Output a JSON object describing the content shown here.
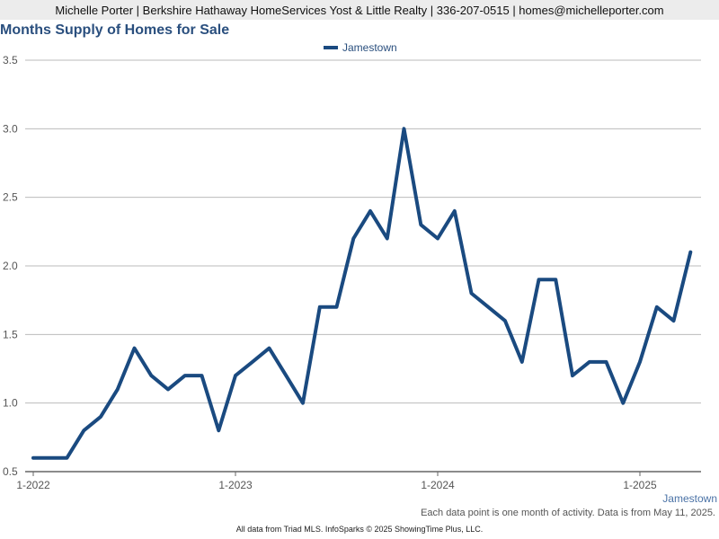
{
  "header": {
    "contact": "Michelle Porter | Berkshire Hathaway HomeServices Yost & Little Realty | 336-207-0515 | homes@michelleporter.com"
  },
  "footer": {
    "note": "Each data point is one month of activity. Data is from May 11, 2025.",
    "source": "All data from Triad MLS. InfoSparks © 2025 ShowingTime Plus, LLC."
  },
  "colors": {
    "series": "#1a4a80",
    "title": "#2a4f7e",
    "grid": "#bbbbbb"
  },
  "chart_data": {
    "type": "line",
    "title": "Months Supply of Homes for Sale",
    "xlabel": "",
    "ylabel": "",
    "ylim": [
      0.5,
      3.5
    ],
    "y_ticks": [
      "0.5",
      "1.0",
      "1.5",
      "2.0",
      "2.5",
      "3.0",
      "3.5"
    ],
    "x_ticks": [
      "1-2022",
      "1-2023",
      "1-2024",
      "1-2025"
    ],
    "grid": true,
    "legend_position": "top-center",
    "x": [
      "2022-01",
      "2022-02",
      "2022-03",
      "2022-04",
      "2022-05",
      "2022-06",
      "2022-07",
      "2022-08",
      "2022-09",
      "2022-10",
      "2022-11",
      "2022-12",
      "2023-01",
      "2023-02",
      "2023-03",
      "2023-04",
      "2023-05",
      "2023-06",
      "2023-07",
      "2023-08",
      "2023-09",
      "2023-10",
      "2023-11",
      "2023-12",
      "2024-01",
      "2024-02",
      "2024-03",
      "2024-04",
      "2024-05",
      "2024-06",
      "2024-07",
      "2024-08",
      "2024-09",
      "2024-10",
      "2024-11",
      "2024-12",
      "2025-01",
      "2025-02",
      "2025-03",
      "2025-04"
    ],
    "series": [
      {
        "name": "Jamestown",
        "values": [
          0.6,
          0.6,
          0.6,
          0.8,
          0.9,
          1.1,
          1.4,
          1.2,
          1.1,
          1.2,
          1.2,
          0.8,
          1.2,
          1.3,
          1.4,
          1.2,
          1.0,
          1.7,
          1.7,
          2.2,
          2.4,
          2.2,
          3.0,
          2.3,
          2.2,
          2.4,
          1.8,
          1.7,
          1.6,
          1.3,
          1.9,
          1.9,
          1.2,
          1.3,
          1.3,
          1.0,
          1.3,
          1.7,
          1.6,
          2.1
        ]
      }
    ]
  }
}
